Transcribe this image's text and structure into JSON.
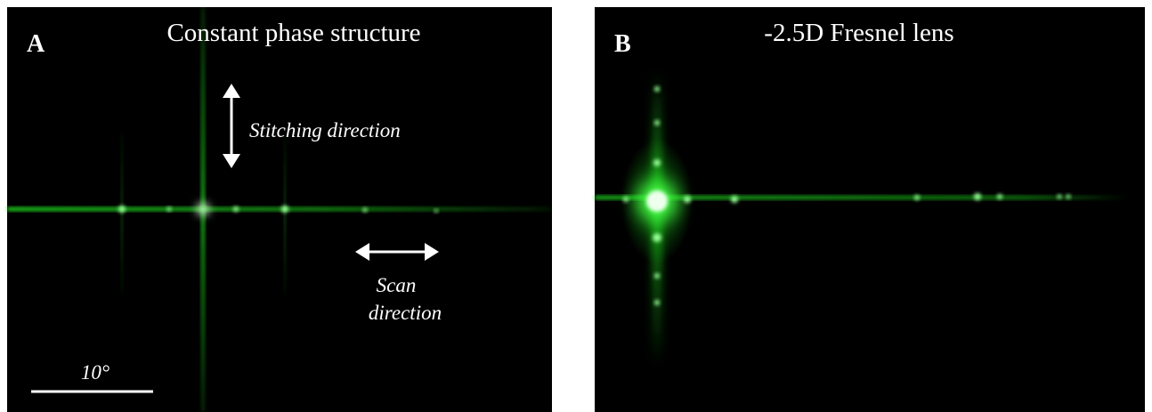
{
  "panels": [
    {
      "label": "A",
      "title": "Constant phase structure",
      "annotations": {
        "stitching": "Stitching direction",
        "scan": [
          "Scan",
          "direction"
        ],
        "scale": "10°"
      }
    },
    {
      "label": "B",
      "title": "-2.5D Fresnel lens"
    }
  ]
}
